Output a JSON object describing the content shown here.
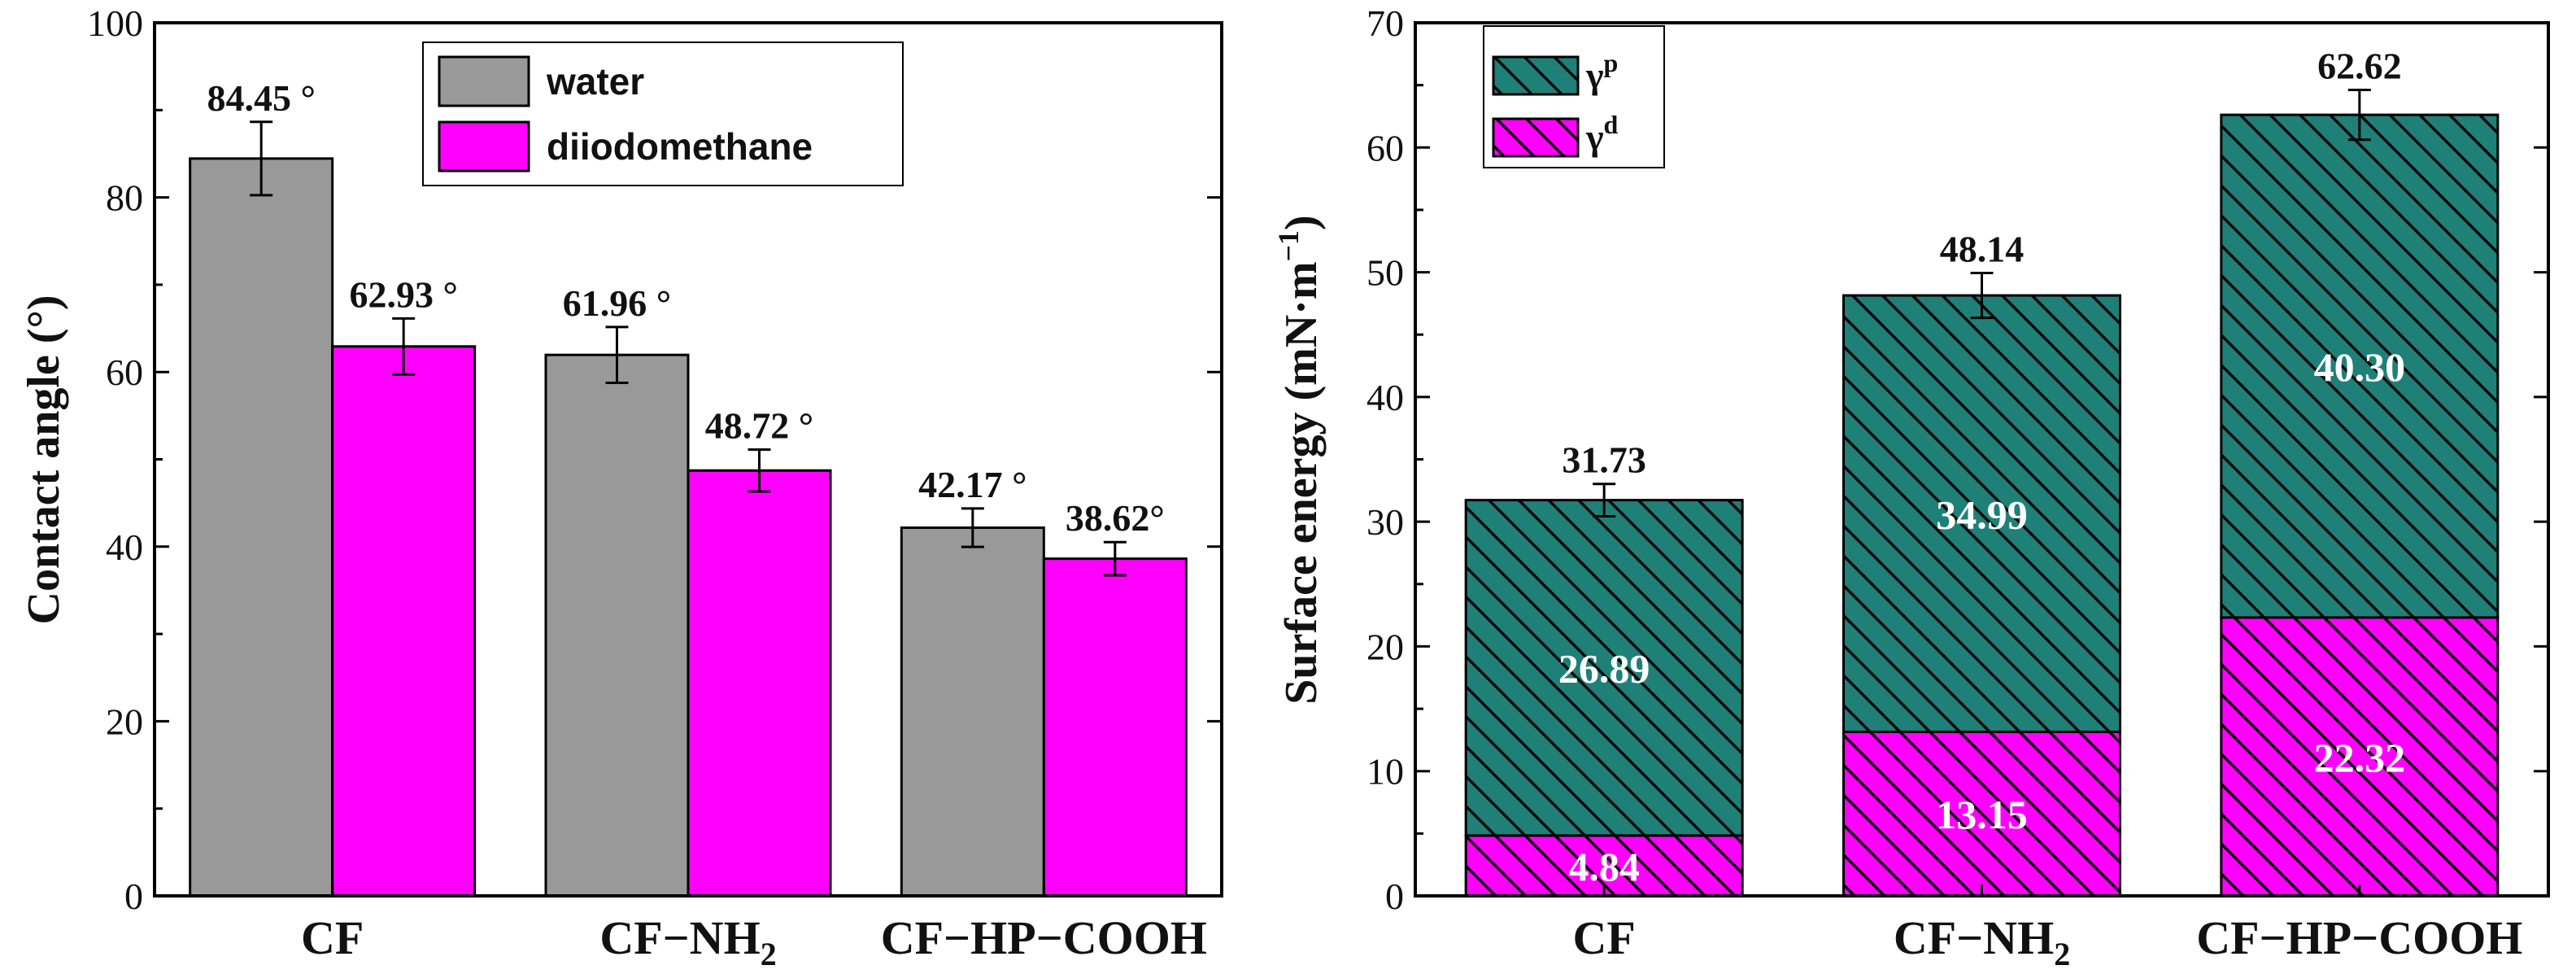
{
  "chart_data": [
    {
      "type": "bar",
      "title": "",
      "xlabel": "",
      "ylabel": "Contact angle (°)",
      "ylim": [
        0,
        100
      ],
      "yticks": [
        0,
        20,
        40,
        60,
        80,
        100
      ],
      "categories": [
        {
          "base": "CF",
          "sub": ""
        },
        {
          "base": "CF−NH",
          "sub": "2"
        },
        {
          "base": "CF−HP−COOH",
          "sub": ""
        }
      ],
      "series": [
        {
          "name": "water",
          "color": "#999999",
          "values": [
            84.45,
            61.96,
            42.17
          ],
          "errors": [
            4.2,
            3.2,
            2.2
          ],
          "labels": [
            "84.45 °",
            "61.96 °",
            "42.17 °"
          ]
        },
        {
          "name": "diiodomethane",
          "color": "#ff00ff",
          "values": [
            62.93,
            48.72,
            38.62
          ],
          "errors": [
            3.2,
            2.4,
            1.9
          ],
          "labels": [
            "62.93 °",
            "48.72 °",
            "38.62°"
          ]
        }
      ],
      "legend": {
        "position": "top-right",
        "entries": [
          "water",
          "diiodomethane"
        ]
      }
    },
    {
      "type": "stacked-bar",
      "title": "",
      "xlabel": "",
      "ylabel": "Surface energy (mN·m",
      "ylabel_sup": "−1",
      "ylabel_close": ")",
      "ylim": [
        0,
        70
      ],
      "yticks": [
        0,
        10,
        20,
        30,
        40,
        50,
        60,
        70
      ],
      "categories": [
        {
          "base": "CF",
          "sub": ""
        },
        {
          "base": "CF−NH",
          "sub": "2"
        },
        {
          "base": "CF−HP−COOH",
          "sub": ""
        }
      ],
      "series": [
        {
          "name": "γd",
          "symbol": "γ",
          "sup": "d",
          "color": "#ff00ff",
          "values": [
            4.84,
            13.15,
            22.32
          ],
          "labels": [
            "4.84",
            "13.15",
            "22.32"
          ]
        },
        {
          "name": "γp",
          "symbol": "γ",
          "sup": "p",
          "color": "#1f8078",
          "values": [
            26.89,
            34.99,
            40.3
          ],
          "labels": [
            "26.89",
            "34.99",
            "40.30"
          ]
        }
      ],
      "totals": [
        31.73,
        48.14,
        62.62
      ],
      "total_labels": [
        "31.73",
        "48.14",
        "62.62"
      ],
      "total_errors": [
        1.3,
        1.8,
        2.0
      ],
      "legend": {
        "position": "top-left",
        "entries": [
          "γp",
          "γd"
        ]
      }
    }
  ]
}
